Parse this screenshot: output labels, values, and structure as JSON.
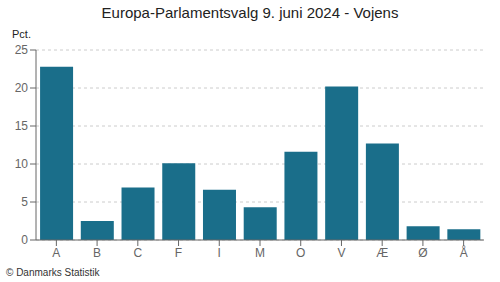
{
  "chart_data": {
    "type": "bar",
    "title": "Europa-Parlamentsvalg 9. juni 2024 - Vojens",
    "ylabel": "Pct.",
    "annotations": [
      "© Danmarks Statistik"
    ],
    "categories": [
      "A",
      "B",
      "C",
      "F",
      "I",
      "M",
      "O",
      "V",
      "Æ",
      "Ø",
      "Å"
    ],
    "values": [
      22.8,
      2.5,
      6.9,
      10.1,
      6.6,
      4.3,
      11.6,
      20.2,
      12.7,
      1.8,
      1.4
    ],
    "color": "#1a6e8a",
    "ylim": [
      0,
      25
    ],
    "yticks": [
      0,
      5,
      10,
      15,
      20,
      25
    ],
    "grid": true
  }
}
